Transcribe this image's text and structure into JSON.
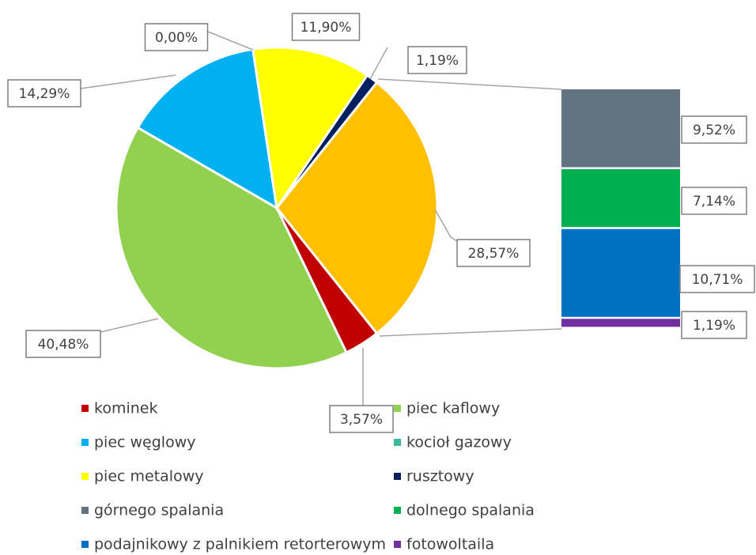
{
  "chart_data": {
    "type": "pie-of-bar",
    "categories": [
      "kominek",
      "piec kaflowy",
      "piec węglowy",
      "kocioł gazowy",
      "piec metalowy",
      "rusztowy",
      "górnego spalania",
      "dolnego spalania",
      "podajnikowy z palnikiem retorterowym",
      "fotowoltaila"
    ],
    "values": [
      3.57,
      40.48,
      14.29,
      0.0,
      11.9,
      1.19,
      9.52,
      7.14,
      10.71,
      1.19
    ],
    "value_labels": [
      "3,57%",
      "40,48%",
      "14,29%",
      "0,00%",
      "11,90%",
      "1,19%",
      "9,52%",
      "7,14%",
      "10,71%",
      "1,19%"
    ],
    "colors": [
      "#c00000",
      "#92d050",
      "#00b0f0",
      "#3cb89a",
      "#ffff00",
      "#002060",
      "#637480",
      "#00b050",
      "#0070c0",
      "#7030a0"
    ],
    "split_count": 4,
    "other_value": 28.57,
    "other_value_label": "28,57%",
    "other_color": "#ffc000"
  }
}
